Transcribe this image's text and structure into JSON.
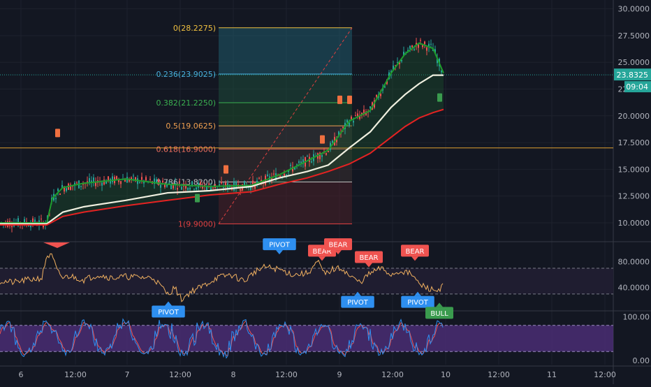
{
  "colors": {
    "background": "#131722",
    "grid": "#1e222d",
    "axis_text": "#b2b5be",
    "candle_up": "#26a69a",
    "candle_down": "#ef5350",
    "ema_fast": "#1e9c2c",
    "ema_mid": "#f0f0e0",
    "ema_slow": "#e52222",
    "rsi_line": "#f0b060",
    "stoch_k": "#2e8ff0",
    "stoch_d": "#ef5350",
    "stoch_band": "#4a2d73",
    "rsi_band": "#1f1d30",
    "pivot_label": "#2e8ff0",
    "bear_label": "#ef5350",
    "bull_label": "#3a9b4e",
    "fib_line": "#e0a030",
    "fib_fill_top": "#2a6a7a",
    "fib_fill_green": "#1e4a2a",
    "fib_fill_red": "#5a1a22"
  },
  "chart_data": [
    {
      "type": "line",
      "panel": "price",
      "title": "",
      "y_ticks": [
        "30.0000",
        "27.5000",
        "25.0000",
        "22.5000",
        "20.0000",
        "17.5000",
        "15.0000",
        "12.5000",
        "10.0000"
      ],
      "ylim": [
        8.3,
        30.5
      ],
      "x_ticks": [
        "6",
        "12:00",
        "7",
        "12:00",
        "8",
        "12:00",
        "9",
        "12:00",
        "10",
        "12:00",
        "11",
        "12:00"
      ],
      "last_price": "23.8325",
      "countdown": "09:04",
      "horizontal_line": 17.0,
      "fib_levels": [
        {
          "label": "0(28.2275)",
          "value": 28.2275,
          "color": "#f0c040"
        },
        {
          "label": "0.236(23.9025)",
          "value": 23.9025,
          "color": "#4ab0e0"
        },
        {
          "label": "0.382(21.2250)",
          "value": 21.225,
          "color": "#3ab050"
        },
        {
          "label": "0.5(19.0625)",
          "value": 19.0625,
          "color": "#f0a050"
        },
        {
          "label": "0.618(16.9000)",
          "value": 16.9,
          "color": "#f07060"
        },
        {
          "label": "0.786(13.8200)",
          "value": 13.82,
          "color": "#c0c0c0"
        },
        {
          "label": "1(9.9000)",
          "value": 9.9,
          "color": "#e04040"
        }
      ],
      "series": [
        {
          "name": "",
          "color": "#1e9c2c",
          "x": [
            0,
            67,
            75,
            90,
            120,
            180,
            240,
            300,
            360,
            400,
            440,
            470,
            500,
            530,
            560,
            580,
            600,
            620,
            635
          ],
          "values": [
            10.0,
            10.0,
            12.3,
            13.3,
            13.7,
            14.1,
            13.6,
            13.4,
            13.5,
            14.5,
            15.8,
            16.8,
            19.5,
            20.5,
            24.0,
            25.8,
            26.8,
            26.3,
            24.0
          ]
        },
        {
          "name": "",
          "color": "#f0f0e0",
          "x": [
            0,
            67,
            90,
            120,
            180,
            240,
            300,
            360,
            400,
            440,
            470,
            500,
            530,
            560,
            580,
            600,
            620,
            635
          ],
          "values": [
            9.9,
            9.9,
            11.0,
            11.5,
            12.1,
            12.8,
            13.0,
            13.4,
            14.2,
            14.8,
            15.4,
            17.0,
            18.5,
            20.8,
            22.0,
            23.0,
            23.8,
            23.8
          ]
        },
        {
          "name": "",
          "color": "#e52222",
          "x": [
            0,
            67,
            90,
            120,
            180,
            240,
            300,
            360,
            400,
            440,
            470,
            500,
            530,
            560,
            580,
            600,
            620,
            635
          ],
          "values": [
            9.8,
            9.8,
            10.6,
            11.0,
            11.6,
            12.1,
            12.6,
            12.9,
            13.6,
            14.2,
            14.8,
            15.5,
            16.5,
            18.0,
            19.0,
            19.8,
            20.3,
            20.6
          ]
        }
      ]
    },
    {
      "type": "line",
      "panel": "rsi",
      "y_ticks": [
        "80.0000",
        "40.0000"
      ],
      "ylim": [
        5,
        110
      ],
      "bands": [
        70,
        30
      ],
      "labels": [
        {
          "text": "PIVOT",
          "kind": "pivot",
          "x": 241,
          "y_value": 12,
          "below": true
        },
        {
          "text": "PIVOT",
          "kind": "pivot",
          "x": 400,
          "y_value": 98,
          "below": false
        },
        {
          "text": "PIVOT",
          "kind": "pivot",
          "x": 512,
          "y_value": 27,
          "below": true
        },
        {
          "text": "PIVOT",
          "kind": "pivot",
          "x": 598,
          "y_value": 27,
          "below": true
        },
        {
          "text": "BEAR",
          "kind": "bear",
          "x": 461,
          "y_value": 88,
          "below": false
        },
        {
          "text": "BEAR",
          "kind": "bear",
          "x": 484,
          "y_value": 98,
          "below": false
        },
        {
          "text": "BEAR",
          "kind": "bear",
          "x": 528,
          "y_value": 78,
          "below": false
        },
        {
          "text": "BEAR",
          "kind": "bear",
          "x": 594,
          "y_value": 88,
          "below": false
        },
        {
          "text": "BULL",
          "kind": "bull",
          "x": 629,
          "y_value": 10,
          "below": true
        }
      ],
      "series": [
        {
          "name": "",
          "color": "#f0b060",
          "x": [
            0,
            20,
            40,
            60,
            67,
            75,
            82,
            90,
            100,
            120,
            140,
            160,
            180,
            200,
            220,
            240,
            250,
            260,
            275,
            290,
            310,
            330,
            350,
            365,
            380,
            400,
            420,
            440,
            455,
            465,
            475,
            490,
            500,
            515,
            530,
            545,
            560,
            575,
            590,
            600,
            615,
            625,
            635
          ],
          "values": [
            50,
            48,
            52,
            55,
            90,
            88,
            65,
            55,
            58,
            52,
            60,
            55,
            57,
            56,
            55,
            30,
            40,
            22,
            35,
            42,
            55,
            60,
            50,
            65,
            72,
            68,
            60,
            62,
            80,
            60,
            68,
            70,
            58,
            48,
            62,
            70,
            60,
            66,
            60,
            45,
            38,
            35,
            43
          ]
        }
      ]
    },
    {
      "type": "line",
      "panel": "stochastic",
      "y_ticks": [
        "100.00",
        "0.00"
      ],
      "ylim": [
        -10,
        110
      ],
      "bands": [
        80,
        20
      ],
      "series": [
        {
          "name": "",
          "color": "#2e8ff0"
        },
        {
          "name": "",
          "color": "#ef5350"
        }
      ]
    }
  ]
}
